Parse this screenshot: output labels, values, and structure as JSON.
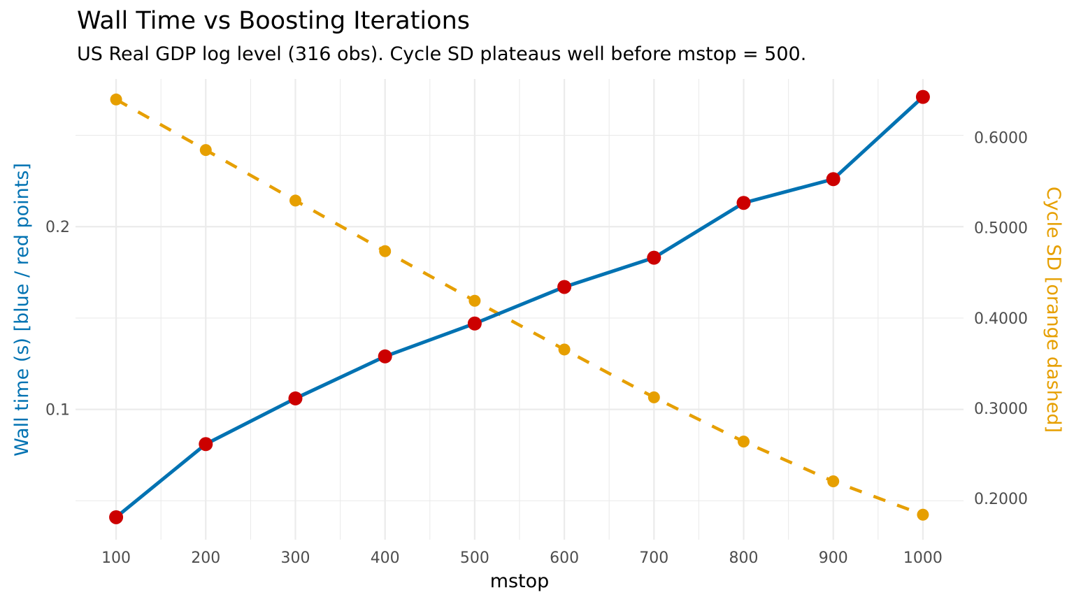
{
  "chart_data": {
    "type": "line",
    "title": "Wall Time vs Boosting Iterations",
    "subtitle": "US Real GDP log level (316 obs). Cycle SD plateaus well before mstop = 500.",
    "xlabel": "mstop",
    "ylabel_left": "Wall time (s)  [blue / red points]",
    "ylabel_right": "Cycle SD  [orange dashed]",
    "x": [
      100,
      200,
      300,
      400,
      500,
      600,
      700,
      800,
      900,
      1000
    ],
    "xlim": [
      54.7,
      1045.3
    ],
    "x_ticks": [
      100,
      200,
      300,
      400,
      500,
      600,
      700,
      800,
      900,
      1000
    ],
    "x_tick_labels": [
      "100",
      "200",
      "300",
      "400",
      "500",
      "600",
      "700",
      "800",
      "900",
      "1000"
    ],
    "ylim_left": [
      0.0287,
      0.2808
    ],
    "y_left_ticks": [
      0.1,
      0.2
    ],
    "y_left_tick_labels": [
      "0.1",
      "0.2"
    ],
    "y_left_minor": [
      0.05,
      0.15,
      0.25
    ],
    "ylim_right": [
      0.1543,
      0.6647
    ],
    "y_right_ticks": [
      0.2,
      0.3,
      0.4,
      0.5,
      0.6
    ],
    "y_right_tick_labels": [
      "0.2000",
      "0.3000",
      "0.4000",
      "0.5000",
      "0.6000"
    ],
    "grid": true,
    "series": [
      {
        "name": "Wall time (s)",
        "axis": "left",
        "style": "solid line with points",
        "line_color": "#0072B2",
        "point_color": "#CC0000",
        "values": [
          0.041,
          0.081,
          0.106,
          0.129,
          0.147,
          0.167,
          0.183,
          0.213,
          0.226,
          0.271
        ]
      },
      {
        "name": "Cycle SD",
        "axis": "right",
        "style": "dashed line with points",
        "line_color": "#E69F00",
        "point_color": "#E69F00",
        "values": [
          0.642,
          0.586,
          0.53,
          0.474,
          0.419,
          0.365,
          0.312,
          0.263,
          0.219,
          0.182
        ]
      }
    ],
    "colors": {
      "left_axis_title": "#0072B2",
      "right_axis_title": "#E69F00",
      "grid": "#ebebeb",
      "tick_text": "#4d4d4d"
    }
  }
}
